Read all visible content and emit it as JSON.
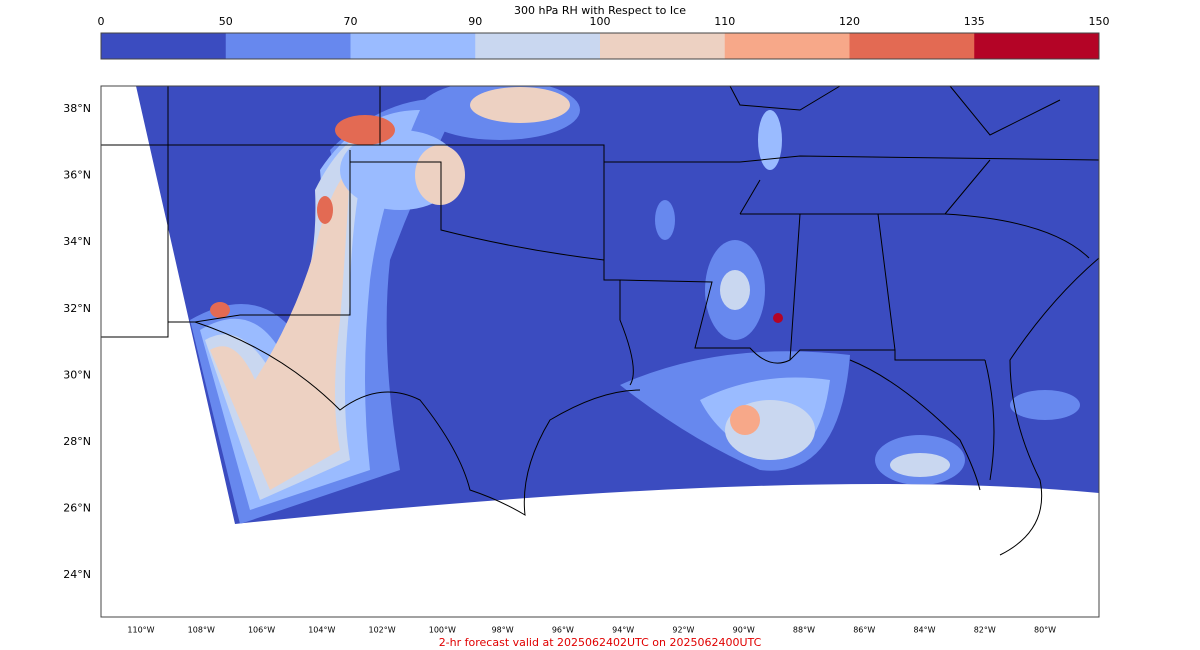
{
  "colorbar": {
    "title": "300 hPa RH with Respect to Ice",
    "ticks": [
      0,
      50,
      70,
      90,
      100,
      110,
      120,
      135,
      150
    ],
    "colors": [
      "#3b4cc0",
      "#6788ee",
      "#9abbff",
      "#c9d7f0",
      "#edd1c2",
      "#f7a889",
      "#e36a53",
      "#b40426"
    ]
  },
  "map": {
    "lat_labels": [
      "38°N",
      "36°N",
      "34°N",
      "32°N",
      "30°N",
      "28°N",
      "26°N",
      "24°N"
    ],
    "lon_labels": [
      "110°W",
      "108°W",
      "106°W",
      "104°W",
      "102°W",
      "100°W",
      "98°W",
      "96°W",
      "94°W",
      "92°W",
      "90°W",
      "88°W",
      "86°W",
      "84°W",
      "82°W",
      "80°W"
    ]
  },
  "footer": "2-hr forecast valid at 2025062402UTC on 2025062400UTC"
}
